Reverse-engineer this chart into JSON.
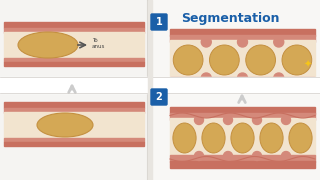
{
  "bg_color": "#f0eff0",
  "title": "Segmentation",
  "title_color": "#1a5fa8",
  "title_fontsize": 9,
  "title_bold": true,
  "intestine_pink": "#d4897a",
  "intestine_outer": "#c97060",
  "intestine_inner_bg": "#e8c8b0",
  "bolus_color": "#d4a855",
  "bolus_edge": "#c49040",
  "lumen_color": "#f5e8d8",
  "white_bg": "#ffffff",
  "panel_bg": "#f8f5f0",
  "arrow_color": "#d0d0d0",
  "label_blue": "#1a5fa8",
  "separator_color": "#e0dedd",
  "text_color": "#444444",
  "star_color": "#f5c518"
}
